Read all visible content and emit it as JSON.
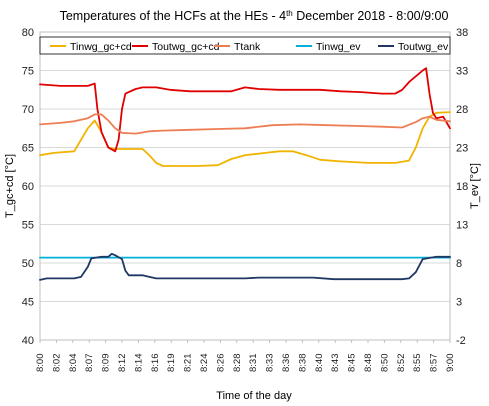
{
  "chart_data": {
    "type": "line",
    "title_main": "Temperatures of the HCFs at the HEs - 4",
    "title_sup": "th",
    "title_rest": " December 2018 - 8:00/9:00",
    "xlabel": "Time of the day",
    "ylabel_left": "T_gc+cd [°C]",
    "ylabel_right": "T_ev [°C]",
    "ylim_left": [
      40,
      80
    ],
    "ylim_right": [
      -2,
      38
    ],
    "yticks_left": [
      "40",
      "45",
      "50",
      "55",
      "60",
      "65",
      "70",
      "75",
      "80"
    ],
    "yticks_right": [
      "-2",
      "3",
      "8",
      "13",
      "18",
      "23",
      "28",
      "33",
      "38"
    ],
    "x_tick_labels": [
      "8:00",
      "8:02",
      "8:04",
      "8:07",
      "8:09",
      "8:12",
      "8:14",
      "8:16",
      "8:19",
      "8:21",
      "8:24",
      "8:26",
      "8:28",
      "8:31",
      "8:33",
      "8:36",
      "8:38",
      "8:40",
      "8:43",
      "8:45",
      "8:48",
      "8:50",
      "8:52",
      "8:55",
      "8:57",
      "9:00"
    ],
    "x_unit": "minutes after 8:00",
    "grid": "horizontal",
    "legend_placement": "top",
    "colors": {
      "Tinwg_gc+cd": "#f0b400",
      "Toutwg_gc+cd": "#e00000",
      "Ttank": "#ed7d55",
      "Tinwg_ev": "#00b0d8",
      "Toutwg_ev": "#1f3864"
    },
    "series": [
      {
        "name": "Tinwg_gc+cd",
        "axis": "left",
        "points": [
          [
            0,
            64
          ],
          [
            2,
            64.3
          ],
          [
            5,
            64.5
          ],
          [
            6,
            66
          ],
          [
            7,
            67.5
          ],
          [
            8,
            68.5
          ],
          [
            9,
            67
          ],
          [
            10,
            65
          ],
          [
            11,
            64.8
          ],
          [
            13,
            64.8
          ],
          [
            15,
            64.8
          ],
          [
            16,
            64
          ],
          [
            17,
            63
          ],
          [
            18,
            62.6
          ],
          [
            20,
            62.6
          ],
          [
            23,
            62.6
          ],
          [
            26,
            62.7
          ],
          [
            28,
            63.5
          ],
          [
            30,
            64
          ],
          [
            33,
            64.3
          ],
          [
            35,
            64.5
          ],
          [
            37,
            64.5
          ],
          [
            39,
            64
          ],
          [
            41,
            63.4
          ],
          [
            44,
            63.2
          ],
          [
            48,
            63
          ],
          [
            52,
            63
          ],
          [
            54,
            63.3
          ],
          [
            55,
            65
          ],
          [
            56,
            67.5
          ],
          [
            57,
            69
          ],
          [
            58,
            69.5
          ],
          [
            60,
            69.6
          ]
        ]
      },
      {
        "name": "Toutwg_gc+cd",
        "axis": "left",
        "points": [
          [
            0,
            73.2
          ],
          [
            3,
            73
          ],
          [
            5,
            73
          ],
          [
            7,
            73
          ],
          [
            8,
            73.3
          ],
          [
            8.4,
            70
          ],
          [
            9,
            67
          ],
          [
            10,
            65
          ],
          [
            11,
            64.5
          ],
          [
            11.5,
            66
          ],
          [
            12,
            70
          ],
          [
            12.5,
            72
          ],
          [
            14,
            72.6
          ],
          [
            15,
            72.8
          ],
          [
            17,
            72.8
          ],
          [
            19,
            72.5
          ],
          [
            22,
            72.3
          ],
          [
            25,
            72.3
          ],
          [
            28,
            72.3
          ],
          [
            30,
            72.8
          ],
          [
            32,
            72.6
          ],
          [
            35,
            72.5
          ],
          [
            38,
            72.5
          ],
          [
            41,
            72.5
          ],
          [
            44,
            72.3
          ],
          [
            47,
            72.2
          ],
          [
            50,
            72
          ],
          [
            52,
            72
          ],
          [
            53,
            72.5
          ],
          [
            54,
            73.5
          ],
          [
            56,
            75
          ],
          [
            56.5,
            75.3
          ],
          [
            57,
            72
          ],
          [
            57.5,
            69.5
          ],
          [
            58,
            68.8
          ],
          [
            59,
            69
          ],
          [
            60,
            67.5
          ]
        ]
      },
      {
        "name": "Ttank",
        "axis": "left",
        "points": [
          [
            0,
            68
          ],
          [
            3,
            68.2
          ],
          [
            5,
            68.4
          ],
          [
            7,
            68.8
          ],
          [
            8,
            69.3
          ],
          [
            9,
            69.3
          ],
          [
            10,
            68.5
          ],
          [
            11,
            67.5
          ],
          [
            12,
            66.9
          ],
          [
            14,
            66.8
          ],
          [
            16,
            67.1
          ],
          [
            18,
            67.2
          ],
          [
            22,
            67.3
          ],
          [
            26,
            67.4
          ],
          [
            30,
            67.5
          ],
          [
            34,
            67.9
          ],
          [
            38,
            68
          ],
          [
            42,
            67.9
          ],
          [
            46,
            67.8
          ],
          [
            50,
            67.7
          ],
          [
            53,
            67.6
          ],
          [
            55,
            68.3
          ],
          [
            56,
            68.8
          ],
          [
            57,
            69
          ],
          [
            58,
            68.6
          ],
          [
            60,
            68.4
          ]
        ]
      },
      {
        "name": "Tinwg_ev",
        "axis": "right",
        "points": [
          [
            0,
            8.7
          ],
          [
            60,
            8.7
          ]
        ]
      },
      {
        "name": "Toutwg_ev",
        "axis": "right",
        "points": [
          [
            0,
            5.8
          ],
          [
            1,
            6
          ],
          [
            3,
            6
          ],
          [
            5,
            6
          ],
          [
            6,
            6.2
          ],
          [
            7,
            7.5
          ],
          [
            7.5,
            8.6
          ],
          [
            9,
            8.8
          ],
          [
            10,
            8.8
          ],
          [
            10.5,
            9.2
          ],
          [
            11,
            9
          ],
          [
            12,
            8.5
          ],
          [
            12.5,
            7
          ],
          [
            13,
            6.4
          ],
          [
            15,
            6.4
          ],
          [
            16,
            6.2
          ],
          [
            17,
            6
          ],
          [
            20,
            6
          ],
          [
            25,
            6
          ],
          [
            30,
            6
          ],
          [
            32,
            6.1
          ],
          [
            36,
            6.1
          ],
          [
            40,
            6.1
          ],
          [
            43,
            5.9
          ],
          [
            48,
            5.9
          ],
          [
            53,
            5.9
          ],
          [
            54,
            6
          ],
          [
            55,
            6.8
          ],
          [
            56,
            8.5
          ],
          [
            58,
            8.8
          ],
          [
            60,
            8.8
          ]
        ]
      }
    ]
  }
}
